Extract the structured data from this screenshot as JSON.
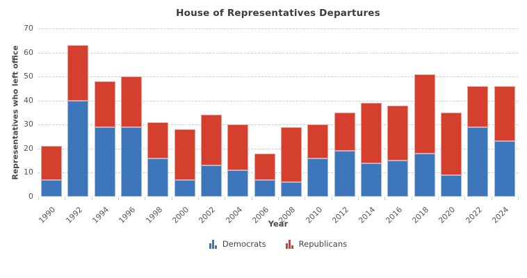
{
  "title": "House of Representatives Departures",
  "axes": {
    "y_title": "Representatives who left office",
    "x_title": "Year",
    "y_ticks": [
      0,
      10,
      20,
      30,
      40,
      50,
      60,
      70
    ],
    "y_max": 70
  },
  "chart_data": {
    "type": "bar",
    "stacked": true,
    "title": "House of Representatives Departures",
    "xlabel": "Year",
    "ylabel": "Representatives who left office",
    "ylim": [
      0,
      70
    ],
    "grid": "horizontal-dashed",
    "legend_position": "bottom-center",
    "categories": [
      "1990",
      "1992",
      "1994",
      "1996",
      "1998",
      "2000",
      "2002",
      "2004",
      "2006",
      "2008",
      "2010",
      "2012",
      "2014",
      "2016",
      "2018",
      "2020",
      "2022",
      "2024"
    ],
    "series": [
      {
        "name": "Democrats",
        "color": "#3e76bb",
        "edge_color": "#9fbbdd",
        "values": [
          7,
          40,
          29,
          29,
          16,
          7,
          13,
          11,
          7,
          6,
          16,
          19,
          14,
          15,
          18,
          9,
          29,
          23
        ]
      },
      {
        "name": "Republicans",
        "color": "#d5402e",
        "edge_color": "#eaa097",
        "values": [
          14,
          23,
          19,
          21,
          15,
          21,
          21,
          19,
          11,
          23,
          14,
          16,
          25,
          23,
          33,
          26,
          17,
          23
        ]
      }
    ],
    "totals": [
      21,
      63,
      48,
      50,
      31,
      28,
      34,
      30,
      18,
      29,
      30,
      35,
      39,
      38,
      51,
      35,
      46,
      46
    ]
  },
  "text_colors": {
    "title": "#3d3d3d",
    "tick_labels": "#555555",
    "grid": "#cccccc"
  }
}
